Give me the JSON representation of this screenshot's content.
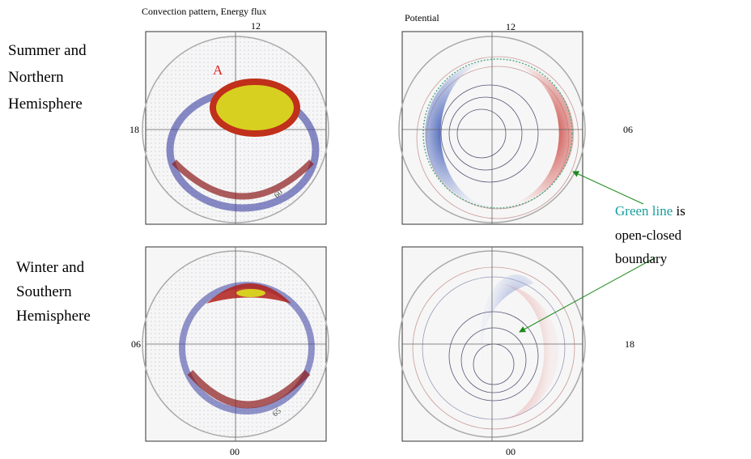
{
  "column_titles": [
    "Convection pattern, Energy flux",
    "Potential"
  ],
  "rows": [
    {
      "label": [
        "Summer and",
        "Northern",
        "Hemisphere"
      ]
    },
    {
      "label": [
        "Winter and",
        "Southern",
        "Hemisphere"
      ]
    }
  ],
  "panels": [
    {
      "top": "12",
      "left": "18",
      "marker": "A",
      "latitude": "60"
    },
    {
      "top": "12",
      "right": "06"
    },
    {
      "left": "06",
      "bottom": "00",
      "latitude": "65"
    },
    {
      "right": "18",
      "bottom": "00"
    }
  ],
  "annotation": {
    "highlight": "Green line",
    "lines": [
      " is",
      "open-closed",
      "boundary"
    ]
  }
}
